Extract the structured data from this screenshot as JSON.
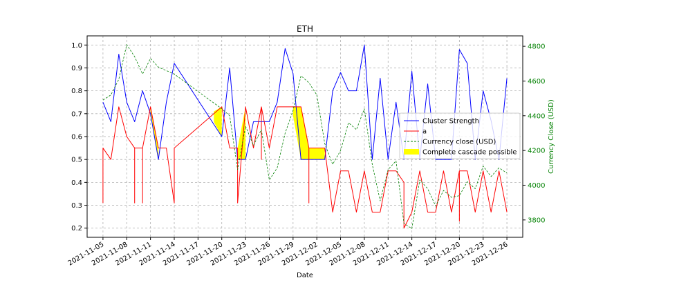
{
  "chart_data": {
    "type": "line",
    "title": "ETH",
    "xlabel": "Date",
    "ylabel": "",
    "ylabel_right": "Currency Close (USD)",
    "ylim": [
      0.16,
      1.04
    ],
    "ylim_right": [
      3700,
      4860
    ],
    "yticks": [
      0.2,
      0.3,
      0.4,
      0.5,
      0.6,
      0.7,
      0.8,
      0.9,
      1.0
    ],
    "yticks_right": [
      3800,
      4000,
      4200,
      4400,
      4600,
      4800
    ],
    "xlim": [
      "2021-11-03",
      "2021-12-28"
    ],
    "xticks": [
      "2021-11-05",
      "2021-11-08",
      "2021-11-11",
      "2021-11-14",
      "2021-11-17",
      "2021-11-20",
      "2021-11-23",
      "2021-11-26",
      "2021-11-29",
      "2021-12-02",
      "2021-12-05",
      "2021-12-08",
      "2021-12-11",
      "2021-12-14",
      "2021-12-17",
      "2021-12-20",
      "2021-12-23",
      "2021-12-26"
    ],
    "grid": true,
    "legend_position": "center-right",
    "colors": {
      "cluster": "#0000ff",
      "a": "#ff0000",
      "close": "#008000",
      "cascade": "#ffff00",
      "right_axis": "#008000"
    },
    "series": [
      {
        "name": "Cluster Strength",
        "axis": "left",
        "style": "solid",
        "points": [
          [
            "2021-11-05",
            0.75
          ],
          [
            "2021-11-06",
            0.665
          ],
          [
            "2021-11-07",
            0.96
          ],
          [
            "2021-11-08",
            0.75
          ],
          [
            "2021-11-09",
            0.665
          ],
          [
            "2021-11-10",
            0.8
          ],
          [
            "2021-11-11",
            0.7
          ],
          [
            "2021-11-12",
            0.5
          ],
          [
            "2021-11-13",
            0.75
          ],
          [
            "2021-11-14",
            0.92
          ],
          [
            "2021-11-20",
            0.6
          ],
          [
            "2021-11-21",
            0.9
          ],
          [
            "2021-11-22",
            0.5
          ],
          [
            "2021-11-23",
            0.5
          ],
          [
            "2021-11-24",
            0.665
          ],
          [
            "2021-11-25",
            0.665
          ],
          [
            "2021-11-26",
            0.665
          ],
          [
            "2021-11-27",
            0.75
          ],
          [
            "2021-11-28",
            0.985
          ],
          [
            "2021-11-29",
            0.875
          ],
          [
            "2021-11-30",
            0.5
          ],
          [
            "2021-12-01",
            0.5
          ],
          [
            "2021-12-02",
            0.5
          ],
          [
            "2021-12-03",
            0.5
          ],
          [
            "2021-12-04",
            0.8
          ],
          [
            "2021-12-05",
            0.88
          ],
          [
            "2021-12-06",
            0.8
          ],
          [
            "2021-12-07",
            0.8
          ],
          [
            "2021-12-08",
            1.0
          ],
          [
            "2021-12-09",
            0.5
          ],
          [
            "2021-12-10",
            0.855
          ],
          [
            "2021-12-11",
            0.5
          ],
          [
            "2021-12-12",
            0.75
          ],
          [
            "2021-12-13",
            0.5
          ],
          [
            "2021-12-14",
            0.885
          ],
          [
            "2021-12-15",
            0.5
          ],
          [
            "2021-12-16",
            0.83
          ],
          [
            "2021-12-17",
            0.5
          ],
          [
            "2021-12-18",
            0.5
          ],
          [
            "2021-12-19",
            0.5
          ],
          [
            "2021-12-20",
            0.98
          ],
          [
            "2021-12-21",
            0.92
          ],
          [
            "2021-12-22",
            0.5
          ],
          [
            "2021-12-23",
            0.8
          ],
          [
            "2021-12-24",
            0.67
          ],
          [
            "2021-12-25",
            0.5
          ],
          [
            "2021-12-26",
            0.855
          ]
        ]
      },
      {
        "name": "a",
        "axis": "left",
        "style": "solid",
        "points": [
          [
            "2021-11-05",
            0.31
          ],
          [
            "2021-11-05",
            0.55
          ],
          [
            "2021-11-06",
            0.5
          ],
          [
            "2021-11-07",
            0.73
          ],
          [
            "2021-11-08",
            0.6
          ],
          [
            "2021-11-09",
            0.55
          ],
          [
            "2021-11-09",
            0.31
          ],
          [
            "2021-11-09",
            0.55
          ],
          [
            "2021-11-10",
            0.55
          ],
          [
            "2021-11-10",
            0.31
          ],
          [
            "2021-11-10",
            0.55
          ],
          [
            "2021-11-11",
            0.73
          ],
          [
            "2021-11-12",
            0.55
          ],
          [
            "2021-11-13",
            0.55
          ],
          [
            "2021-11-14",
            0.31
          ],
          [
            "2021-11-14",
            0.55
          ],
          [
            "2021-11-20",
            0.73
          ],
          [
            "2021-11-21",
            0.55
          ],
          [
            "2021-11-22",
            0.55
          ],
          [
            "2021-11-22",
            0.31
          ],
          [
            "2021-11-23",
            0.73
          ],
          [
            "2021-11-24",
            0.55
          ],
          [
            "2021-11-25",
            0.73
          ],
          [
            "2021-11-25",
            0.5
          ],
          [
            "2021-11-25",
            0.73
          ],
          [
            "2021-11-26",
            0.55
          ],
          [
            "2021-11-27",
            0.73
          ],
          [
            "2021-11-28",
            0.73
          ],
          [
            "2021-11-29",
            0.73
          ],
          [
            "2021-11-30",
            0.73
          ],
          [
            "2021-12-01",
            0.55
          ],
          [
            "2021-12-01",
            0.31
          ],
          [
            "2021-12-01",
            0.55
          ],
          [
            "2021-12-02",
            0.55
          ],
          [
            "2021-12-03",
            0.55
          ],
          [
            "2021-12-04",
            0.27
          ],
          [
            "2021-12-05",
            0.45
          ],
          [
            "2021-12-06",
            0.45
          ],
          [
            "2021-12-07",
            0.27
          ],
          [
            "2021-12-08",
            0.45
          ],
          [
            "2021-12-09",
            0.27
          ],
          [
            "2021-12-10",
            0.27
          ],
          [
            "2021-12-11",
            0.45
          ],
          [
            "2021-12-12",
            0.45
          ],
          [
            "2021-12-13",
            0.4
          ],
          [
            "2021-12-13",
            0.2
          ],
          [
            "2021-12-14",
            0.27
          ],
          [
            "2021-12-15",
            0.45
          ],
          [
            "2021-12-16",
            0.27
          ],
          [
            "2021-12-17",
            0.27
          ],
          [
            "2021-12-18",
            0.45
          ],
          [
            "2021-12-19",
            0.27
          ],
          [
            "2021-12-20",
            0.45
          ],
          [
            "2021-12-20",
            0.23
          ],
          [
            "2021-12-20",
            0.45
          ],
          [
            "2021-12-21",
            0.45
          ],
          [
            "2021-12-22",
            0.27
          ],
          [
            "2021-12-23",
            0.45
          ],
          [
            "2021-12-24",
            0.27
          ],
          [
            "2021-12-25",
            0.45
          ],
          [
            "2021-12-26",
            0.27
          ]
        ]
      },
      {
        "name": "Currency close (USD)",
        "axis": "right",
        "style": "dashed",
        "points": [
          [
            "2021-11-05",
            4490
          ],
          [
            "2021-11-06",
            4520
          ],
          [
            "2021-11-07",
            4610
          ],
          [
            "2021-11-08",
            4810
          ],
          [
            "2021-11-09",
            4740
          ],
          [
            "2021-11-10",
            4640
          ],
          [
            "2021-11-11",
            4730
          ],
          [
            "2021-11-12",
            4680
          ],
          [
            "2021-11-13",
            4660
          ],
          [
            "2021-11-14",
            4640
          ],
          [
            "2021-11-17",
            4540
          ],
          [
            "2021-11-20",
            4440
          ],
          [
            "2021-11-21",
            4400
          ],
          [
            "2021-11-22",
            4090
          ],
          [
            "2021-11-23",
            4340
          ],
          [
            "2021-11-24",
            4230
          ],
          [
            "2021-11-25",
            4320
          ],
          [
            "2021-11-26",
            4030
          ],
          [
            "2021-11-27",
            4100
          ],
          [
            "2021-11-28",
            4300
          ],
          [
            "2021-11-29",
            4430
          ],
          [
            "2021-11-30",
            4630
          ],
          [
            "2021-12-01",
            4590
          ],
          [
            "2021-12-02",
            4520
          ],
          [
            "2021-12-03",
            4240
          ],
          [
            "2021-12-04",
            4120
          ],
          [
            "2021-12-05",
            4200
          ],
          [
            "2021-12-06",
            4360
          ],
          [
            "2021-12-07",
            4320
          ],
          [
            "2021-12-08",
            4440
          ],
          [
            "2021-12-09",
            4120
          ],
          [
            "2021-12-10",
            3910
          ],
          [
            "2021-12-11",
            4090
          ],
          [
            "2021-12-12",
            4140
          ],
          [
            "2021-12-13",
            3780
          ],
          [
            "2021-12-14",
            3750
          ],
          [
            "2021-12-15",
            4030
          ],
          [
            "2021-12-16",
            3980
          ],
          [
            "2021-12-17",
            3880
          ],
          [
            "2021-12-18",
            3970
          ],
          [
            "2021-12-19",
            3930
          ],
          [
            "2021-12-20",
            3940
          ],
          [
            "2021-12-21",
            4020
          ],
          [
            "2021-12-22",
            3980
          ],
          [
            "2021-12-23",
            4110
          ],
          [
            "2021-12-24",
            4050
          ],
          [
            "2021-12-25",
            4100
          ],
          [
            "2021-12-26",
            4070
          ]
        ]
      }
    ],
    "cascade": {
      "name": "Complete cascade possible",
      "regions": [
        {
          "x": [
            "2021-11-11",
            "2021-11-12"
          ],
          "upper": [
            0.73,
            0.55
          ],
          "lower": [
            0.7,
            0.5
          ]
        },
        {
          "x": [
            "2021-11-19",
            "2021-11-20",
            "2021-11-20"
          ],
          "upper": [
            0.71,
            0.73,
            0.73
          ],
          "lower": [
            0.664,
            0.6,
            0.73
          ]
        },
        {
          "x": [
            "2021-11-22",
            "2021-11-23",
            "2021-11-23"
          ],
          "upper": [
            0.55,
            0.73,
            0.5
          ],
          "lower": [
            0.5,
            0.5,
            0.5
          ]
        },
        {
          "x": [
            "2021-11-25",
            "2021-11-25"
          ],
          "upper": [
            0.73,
            0.67
          ],
          "lower": [
            0.665,
            0.665
          ]
        },
        {
          "x": [
            "2021-11-29",
            "2021-11-30",
            "2021-12-01",
            "2021-12-01"
          ],
          "upper": [
            0.73,
            0.73,
            0.55,
            0.55
          ],
          "lower": [
            0.69,
            0.5,
            0.5,
            0.5
          ]
        },
        {
          "x": [
            "2021-12-01",
            "2021-12-03"
          ],
          "upper": [
            0.55,
            0.55
          ],
          "lower": [
            0.5,
            0.5
          ]
        }
      ]
    }
  }
}
